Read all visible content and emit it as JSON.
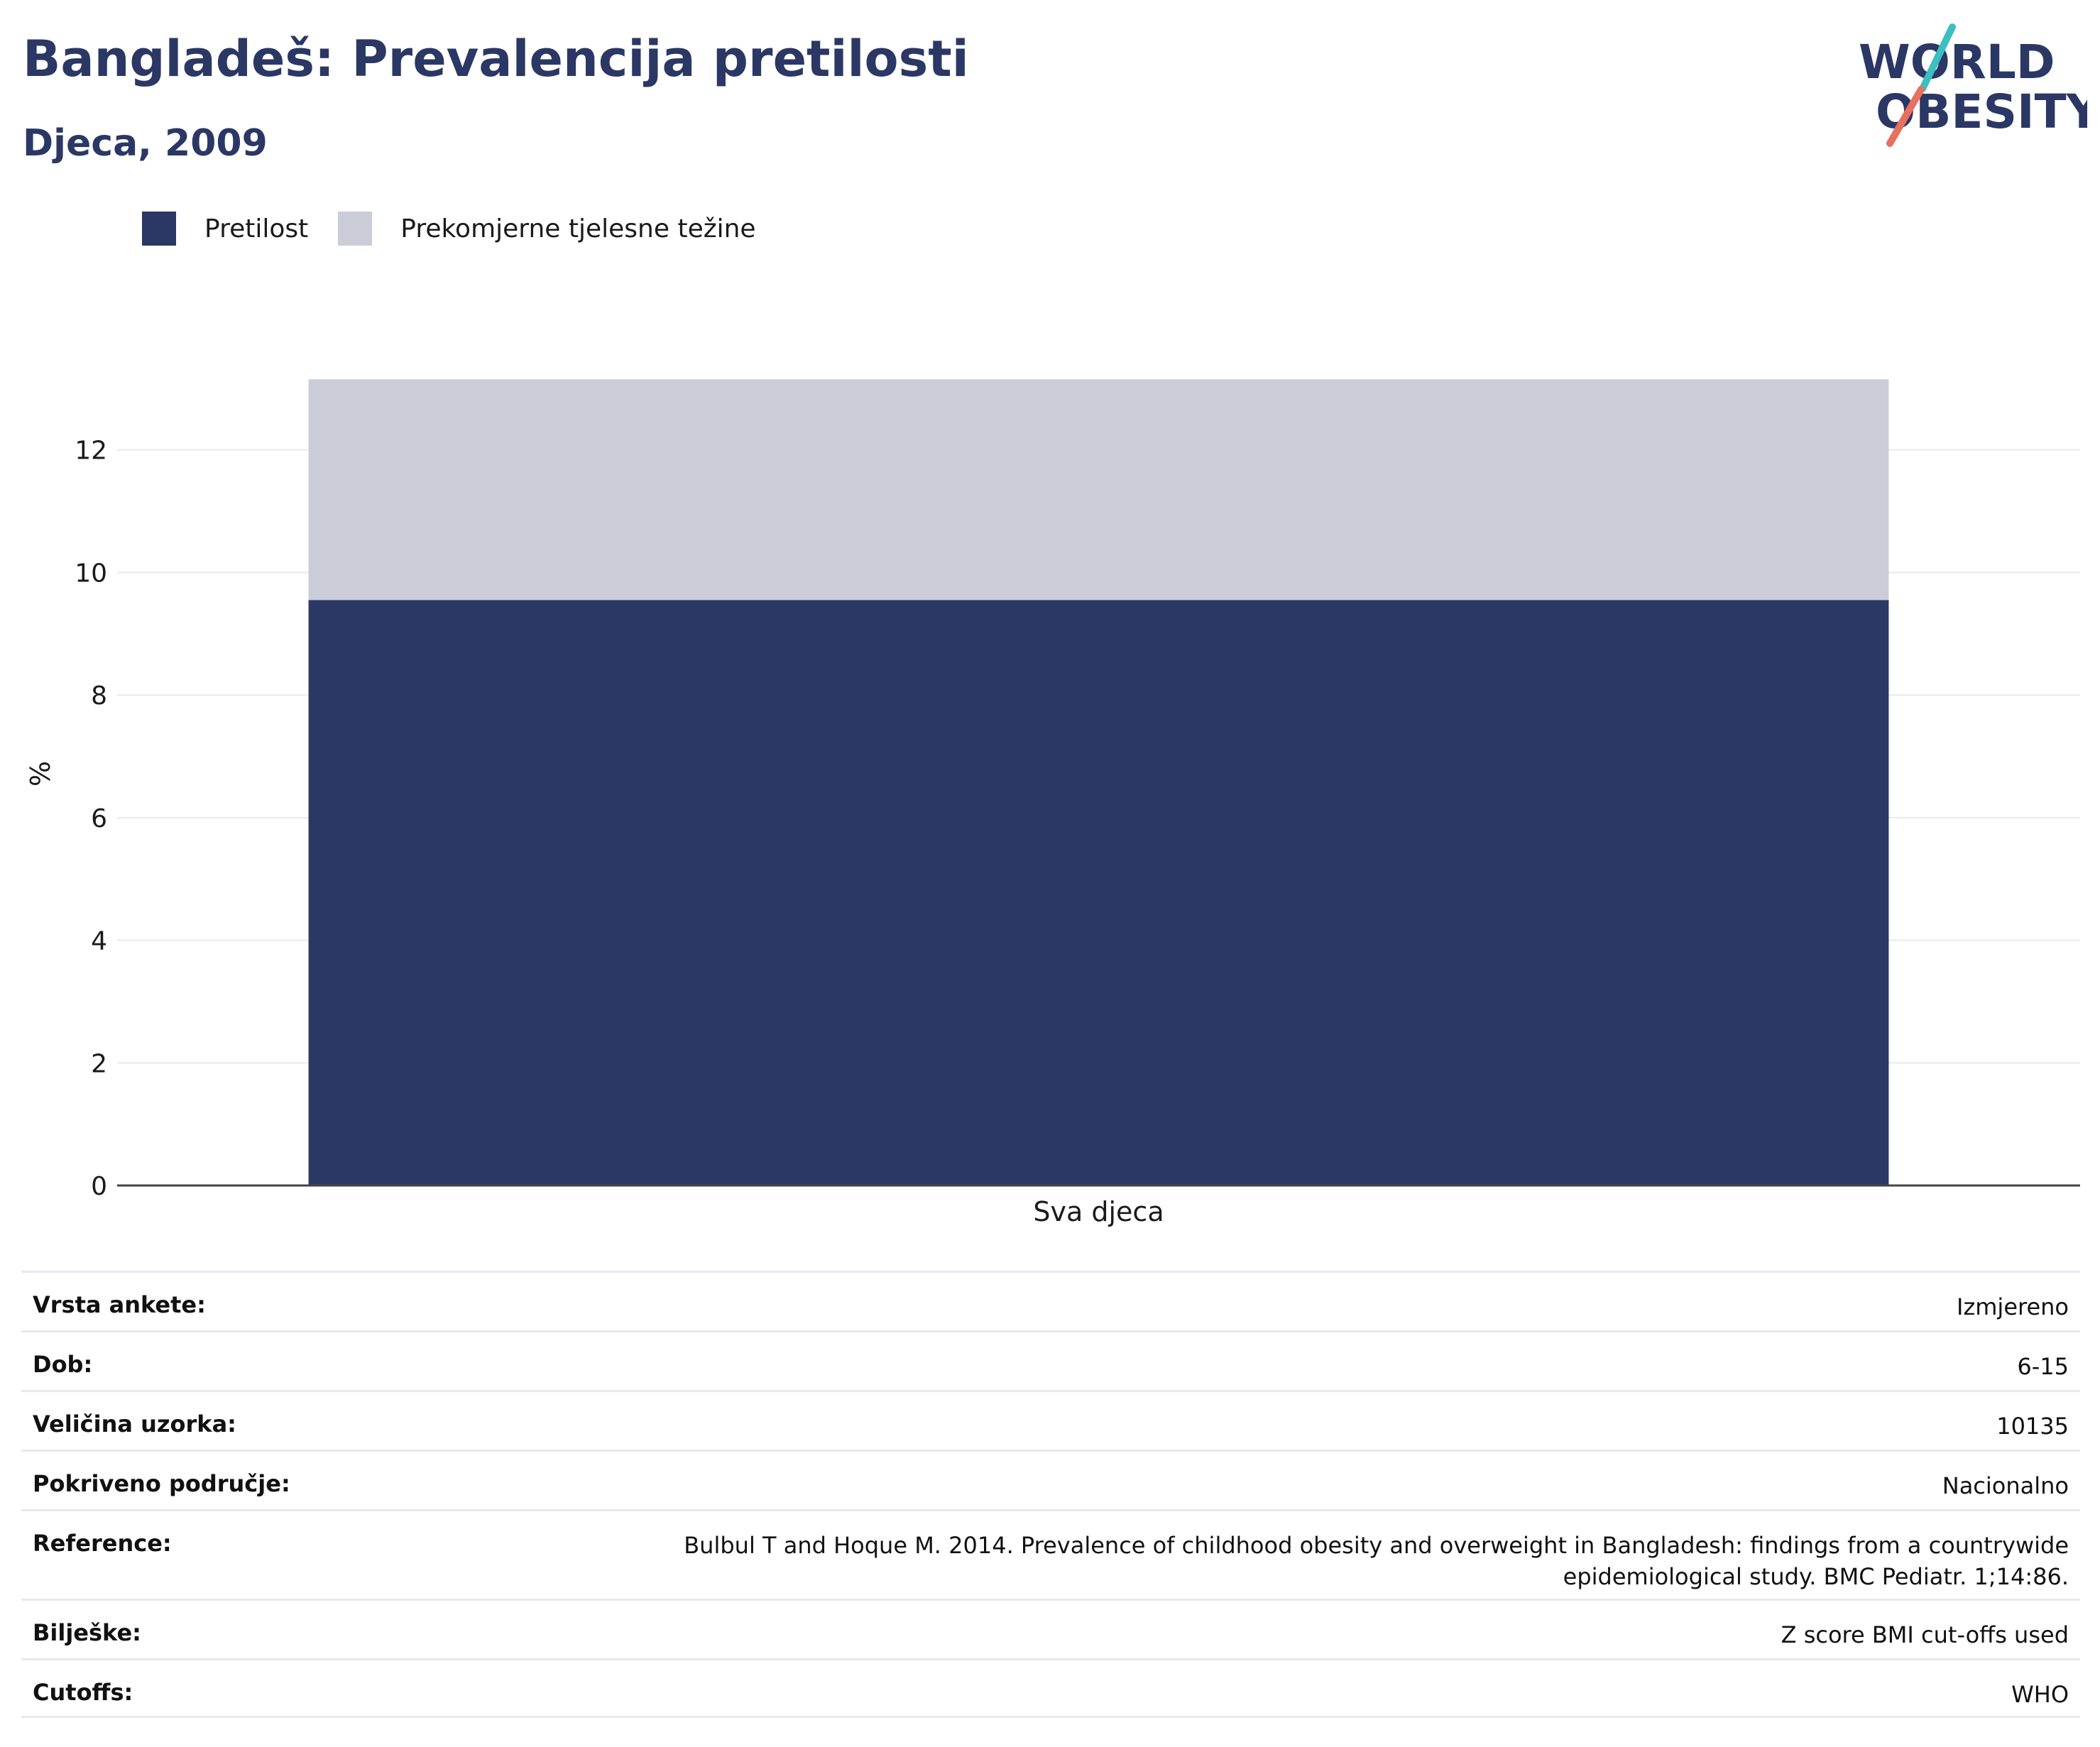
{
  "header": {
    "title": "Bangladeš: Prevalencija pretilosti",
    "subtitle": "Djeca, 2009",
    "logo_line1": "WORLD",
    "logo_line2": "OBESITY"
  },
  "colors": {
    "obesity": "#2b3764",
    "overweight": "#cacdd8",
    "title": "#2b3764",
    "logo_teal": "#3bbfc0",
    "logo_coral": "#e8705f"
  },
  "chart_data": {
    "type": "bar",
    "stacked": true,
    "categories": [
      "Sva djeca"
    ],
    "series": [
      {
        "name": "Pretilost",
        "values": [
          9.55
        ]
      },
      {
        "name": "Prekomjerne tjelesne težine",
        "values": [
          3.6
        ]
      }
    ],
    "ylabel": "%",
    "ylim": [
      0,
      13.2
    ],
    "yticks": [
      0,
      2,
      4,
      6,
      8,
      10,
      12
    ],
    "grid": true,
    "legend": "top-left"
  },
  "info": [
    {
      "key": "Vrsta ankete:",
      "value": "Izmjereno"
    },
    {
      "key": "Dob:",
      "value": "6-15"
    },
    {
      "key": "Veličina uzorka:",
      "value": "10135"
    },
    {
      "key": "Pokriveno područje:",
      "value": "Nacionalno"
    },
    {
      "key": "Reference:",
      "value": "Bulbul T and Hoque M. 2014. Prevalence of childhood obesity and overweight in Bangladesh: findings from a countrywide epidemiological study. BMC Pediatr. 1;14:86."
    },
    {
      "key": "Bilješke:",
      "value": "Z score BMI cut-offs used"
    },
    {
      "key": "Cutoffs:",
      "value": "WHO"
    }
  ]
}
